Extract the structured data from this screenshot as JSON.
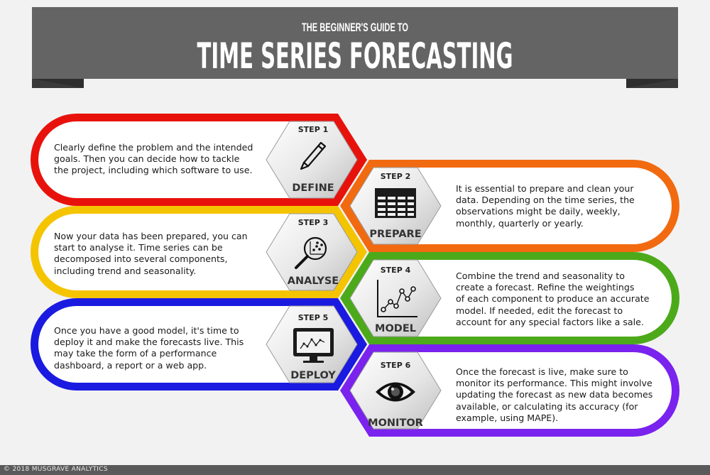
{
  "header": {
    "subtitle": "THE BEGINNER'S GUIDE TO",
    "title": "TIME SERIES FORECASTING"
  },
  "steps": [
    {
      "step": "STEP 1",
      "name": "DEFINE",
      "color": "#e8120c",
      "icon": "pencil-icon",
      "text": [
        "Clearly define the problem and the intended",
        "goals. Then you can decide how to tackle",
        "the project, including which software to use."
      ]
    },
    {
      "step": "STEP 2",
      "name": "PREPARE",
      "color": "#f26a10",
      "icon": "spreadsheet-icon",
      "text": [
        "It is essential to prepare and clean your",
        "data. Depending on the time series, the",
        "observations might be daily, weekly,",
        "monthly, quarterly or yearly."
      ]
    },
    {
      "step": "STEP 3",
      "name": "ANALYSE",
      "color": "#f5c400",
      "icon": "magnifier-scatter-icon",
      "text": [
        "Now your data has been prepared, you can",
        "start to analyse it. Time series can be",
        "decomposed into several components,",
        "including trend and seasonality."
      ]
    },
    {
      "step": "STEP 4",
      "name": "MODEL",
      "color": "#4caa1a",
      "icon": "line-chart-icon",
      "text": [
        "Combine the trend and seasonality to",
        "create a forecast. Refine the weightings",
        "of each component to produce an accurate",
        "model. If needed, edit the forecast to",
        "account for any special factors like a sale."
      ]
    },
    {
      "step": "STEP 5",
      "name": "DEPLOY",
      "color": "#1a1ae0",
      "icon": "monitor-icon",
      "text": [
        "Once you have a good model, it's time to",
        "deploy it and make the forecasts live. This",
        "may take the form of a performance",
        "dashboard, a report or a web app."
      ]
    },
    {
      "step": "STEP 6",
      "name": "MONITOR",
      "color": "#7a22ee",
      "icon": "eye-icon",
      "text": [
        "Once the forecast is live, make sure to",
        "monitor its performance. This might involve",
        "updating the forecast as new data becomes",
        "available, or calculating its accuracy (for",
        "example, using MAPE)."
      ]
    }
  ],
  "footer": {
    "copyright": "© 2018 MUSGRAVE ANALYTICS"
  }
}
